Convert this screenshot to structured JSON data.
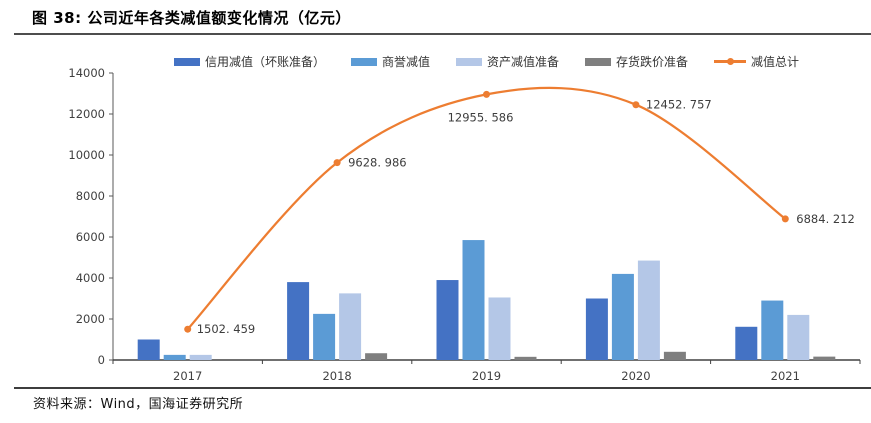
{
  "header": {
    "title": "图 38:  公司近年各类减值额变化情况（亿元）"
  },
  "footer": {
    "source": "资料来源：Wind，国海证券研究所"
  },
  "chart_data": {
    "type": "combo-bar-line",
    "title": "公司近年各类减值额变化情况（亿元）",
    "categories": [
      "2017",
      "2018",
      "2019",
      "2020",
      "2021"
    ],
    "bar_series": [
      {
        "name": "信用减值（坏账准备）",
        "color": "#4472C4",
        "values": [
          1000,
          3800,
          3900,
          3000,
          1620
        ]
      },
      {
        "name": "商誉减值",
        "color": "#5B9BD5",
        "values": [
          250,
          2250,
          5850,
          4200,
          2900
        ]
      },
      {
        "name": "资产减值准备",
        "color": "#B4C7E7",
        "values": [
          250,
          3250,
          3050,
          4850,
          2200
        ]
      },
      {
        "name": "存货跌价准备",
        "color": "#7F7F7F",
        "values": [
          0,
          330,
          155,
          400,
          165
        ]
      }
    ],
    "line_series": {
      "name": "减值总计",
      "color": "#ED7D31",
      "values": [
        1502.459,
        9628.986,
        12955.586,
        12452.757,
        6884.212
      ],
      "labels": [
        "1502. 459",
        "9628. 986",
        "12955. 586",
        "12452. 757",
        "6884. 212"
      ]
    },
    "ylim": [
      0,
      14000
    ],
    "yticks": [
      0,
      2000,
      4000,
      6000,
      8000,
      10000,
      12000,
      14000
    ],
    "legend_position": "top",
    "axis_color": "#595959",
    "label_color": "#404040"
  }
}
